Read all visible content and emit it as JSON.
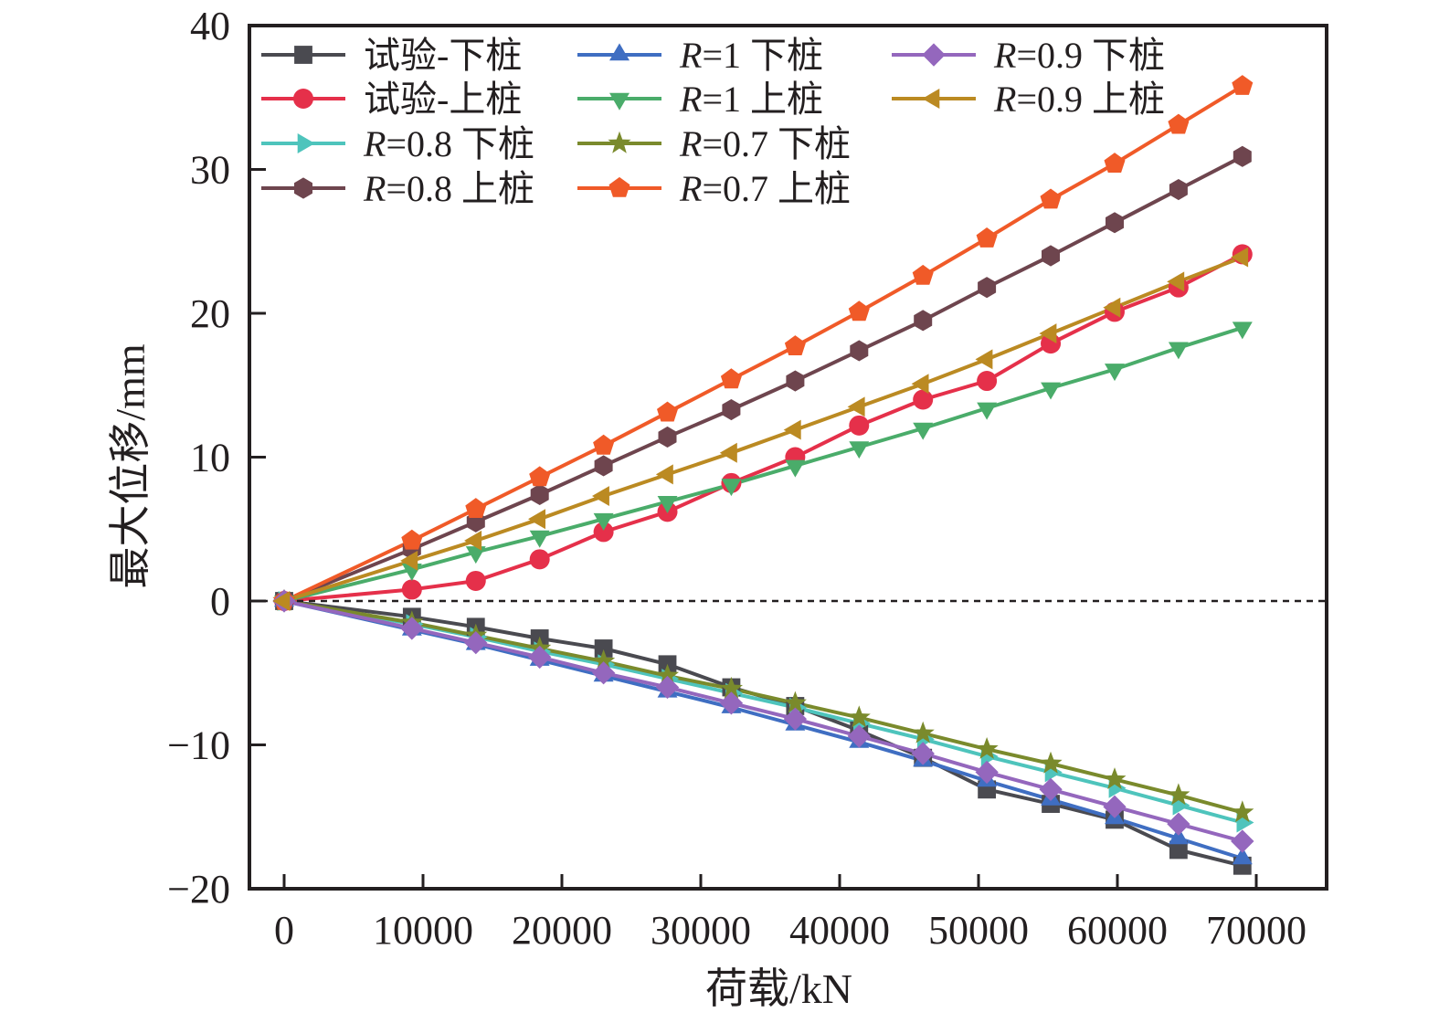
{
  "chart_data": {
    "type": "line",
    "title": "",
    "xlabel": "荷载/kN",
    "ylabel": "最大位移/mm",
    "xlim": [
      -2500,
      75000
    ],
    "ylim": [
      -20,
      40
    ],
    "xticks": [
      0,
      10000,
      20000,
      30000,
      40000,
      50000,
      60000,
      70000
    ],
    "xtick_labels": [
      "0",
      "10000",
      "20000",
      "30000",
      "40000",
      "50000",
      "60000",
      "70000"
    ],
    "yticks": [
      -20,
      -10,
      0,
      10,
      20,
      30,
      40
    ],
    "ytick_labels": [
      "−20",
      "−10",
      "0",
      "10",
      "20",
      "30",
      "40"
    ],
    "grid": false,
    "zero_line": "dashed",
    "legend_position": "top-left",
    "x": [
      0,
      9200,
      13800,
      18400,
      23000,
      27600,
      32200,
      36800,
      41400,
      46000,
      50600,
      55200,
      59800,
      64400,
      69000
    ],
    "series": [
      {
        "name": "试验-下桩",
        "prefix": "",
        "label": "试验-下桩",
        "marker": "square",
        "color": "#4a4a50",
        "values": [
          0,
          -1.1,
          -1.8,
          -2.6,
          -3.3,
          -4.4,
          -6.0,
          -7.3,
          -9.0,
          -10.9,
          -13.1,
          -14.1,
          -15.2,
          -17.3,
          -18.4
        ]
      },
      {
        "name": "试验-上桩",
        "prefix": "",
        "label": "试验-上桩",
        "marker": "circle",
        "color": "#e5304a",
        "values": [
          0,
          0.8,
          1.4,
          2.9,
          4.8,
          6.2,
          8.2,
          10.0,
          12.2,
          14.0,
          15.3,
          17.9,
          20.1,
          21.8,
          24.1
        ]
      },
      {
        "name": "R=0.8 下桩",
        "prefix": "R",
        "label": "=0.8 下桩",
        "marker": "triangle-right",
        "color": "#4ec4bc",
        "values": [
          0,
          -1.6,
          -2.5,
          -3.5,
          -4.4,
          -5.4,
          -6.4,
          -7.4,
          -8.5,
          -9.6,
          -10.8,
          -11.9,
          -13.0,
          -14.2,
          -15.4
        ]
      },
      {
        "name": "R=0.8 上桩",
        "prefix": "R",
        "label": "=0.8 上桩",
        "marker": "hexagon",
        "color": "#6e454e",
        "values": [
          0,
          3.6,
          5.5,
          7.4,
          9.4,
          11.4,
          13.3,
          15.3,
          17.4,
          19.5,
          21.8,
          24.0,
          26.3,
          28.6,
          30.9
        ]
      },
      {
        "name": "R=1 下桩",
        "prefix": "R",
        "label": "=1 下桩",
        "marker": "triangle-up",
        "color": "#3f6ec2",
        "values": [
          0,
          -2.0,
          -3.0,
          -4.1,
          -5.2,
          -6.3,
          -7.4,
          -8.6,
          -9.8,
          -11.1,
          -12.5,
          -13.8,
          -15.1,
          -16.5,
          -17.9
        ]
      },
      {
        "name": "R=1 上桩",
        "prefix": "R",
        "label": "=1 上桩",
        "marker": "triangle-down",
        "color": "#4aac6a",
        "values": [
          0,
          2.2,
          3.4,
          4.5,
          5.7,
          6.9,
          8.1,
          9.4,
          10.7,
          12.0,
          13.4,
          14.8,
          16.1,
          17.6,
          19.0
        ]
      },
      {
        "name": "R=0.7 下桩",
        "prefix": "R",
        "label": "=0.7 下桩",
        "marker": "star",
        "color": "#7a8a2c",
        "values": [
          0,
          -1.5,
          -2.4,
          -3.3,
          -4.2,
          -5.2,
          -6.1,
          -7.1,
          -8.1,
          -9.2,
          -10.3,
          -11.3,
          -12.4,
          -13.5,
          -14.7
        ]
      },
      {
        "name": "R=0.7 上桩",
        "prefix": "R",
        "label": "=0.7 上桩",
        "marker": "pentagon",
        "color": "#f05a28",
        "values": [
          0,
          4.2,
          6.4,
          8.6,
          10.8,
          13.1,
          15.4,
          17.7,
          20.1,
          22.6,
          25.2,
          27.9,
          30.4,
          33.1,
          35.8
        ]
      },
      {
        "name": "R=0.9 下桩",
        "prefix": "R",
        "label": "=0.9 下桩",
        "marker": "diamond",
        "color": "#9467bd",
        "values": [
          0,
          -1.9,
          -2.9,
          -3.9,
          -5.0,
          -6.0,
          -7.1,
          -8.2,
          -9.4,
          -10.6,
          -11.9,
          -13.1,
          -14.3,
          -15.5,
          -16.7
        ]
      },
      {
        "name": "R=0.9 上桩",
        "prefix": "R",
        "label": "=0.9 上桩",
        "marker": "triangle-left",
        "color": "#bb8a22",
        "values": [
          0,
          2.8,
          4.2,
          5.7,
          7.3,
          8.8,
          10.3,
          11.9,
          13.5,
          15.1,
          16.8,
          18.6,
          20.4,
          22.2,
          23.9
        ]
      }
    ]
  }
}
